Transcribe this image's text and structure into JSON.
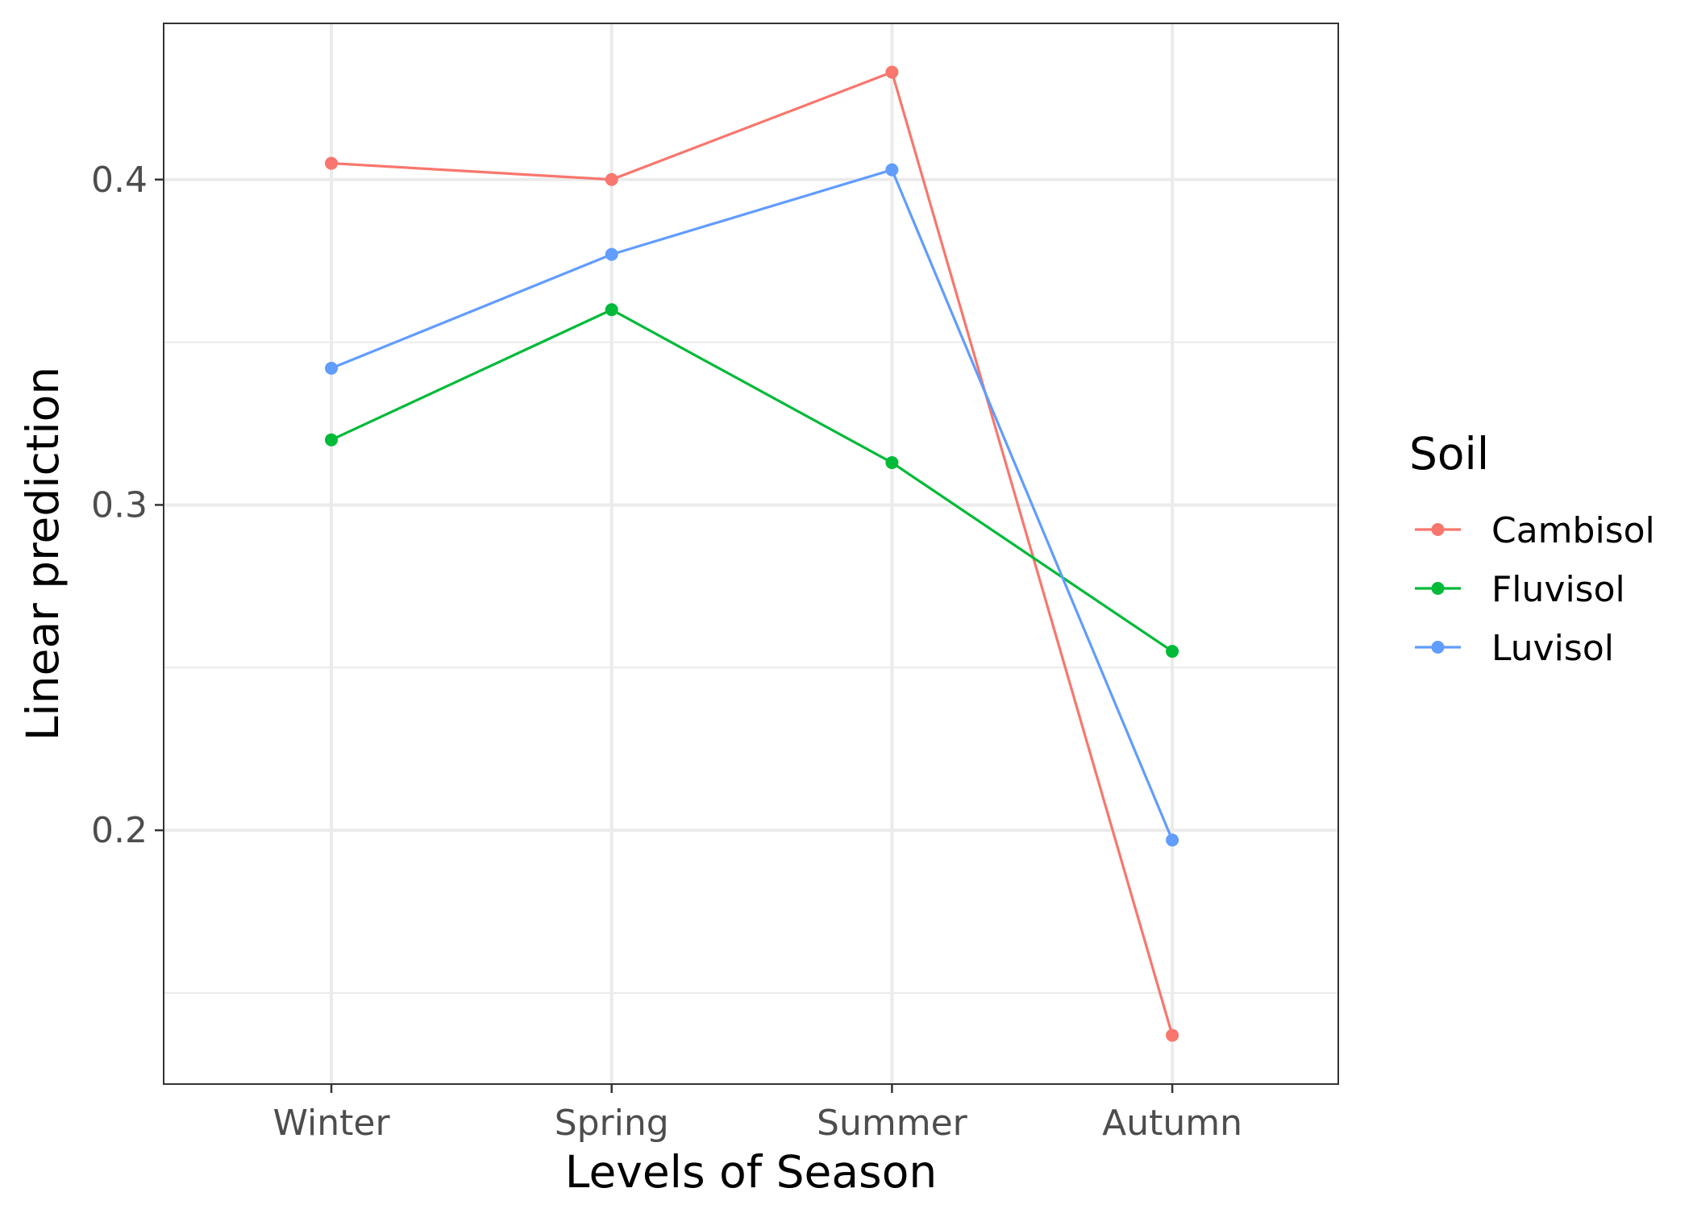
{
  "chart_data": {
    "type": "line",
    "categories": [
      "Winter",
      "Spring",
      "Summer",
      "Autumn"
    ],
    "xlabel": "Levels of Season",
    "ylabel": "Linear prediction",
    "ylim": [
      0.122,
      0.448
    ],
    "yticks": [
      0.2,
      0.3,
      0.4
    ],
    "ytick_labels": [
      "0.2",
      "0.3",
      "0.4"
    ],
    "yminor": [
      0.15,
      0.25,
      0.35
    ],
    "grid": true,
    "legend": {
      "title": "Soil",
      "position": "right"
    },
    "series": [
      {
        "name": "Cambisol",
        "color": "#F8766D",
        "values": [
          0.405,
          0.4,
          0.433,
          0.137
        ]
      },
      {
        "name": "Fluvisol",
        "color": "#00BA38",
        "values": [
          0.32,
          0.36,
          0.313,
          0.255
        ]
      },
      {
        "name": "Luvisol",
        "color": "#619CFF",
        "values": [
          0.342,
          0.377,
          0.403,
          0.197
        ]
      }
    ]
  }
}
